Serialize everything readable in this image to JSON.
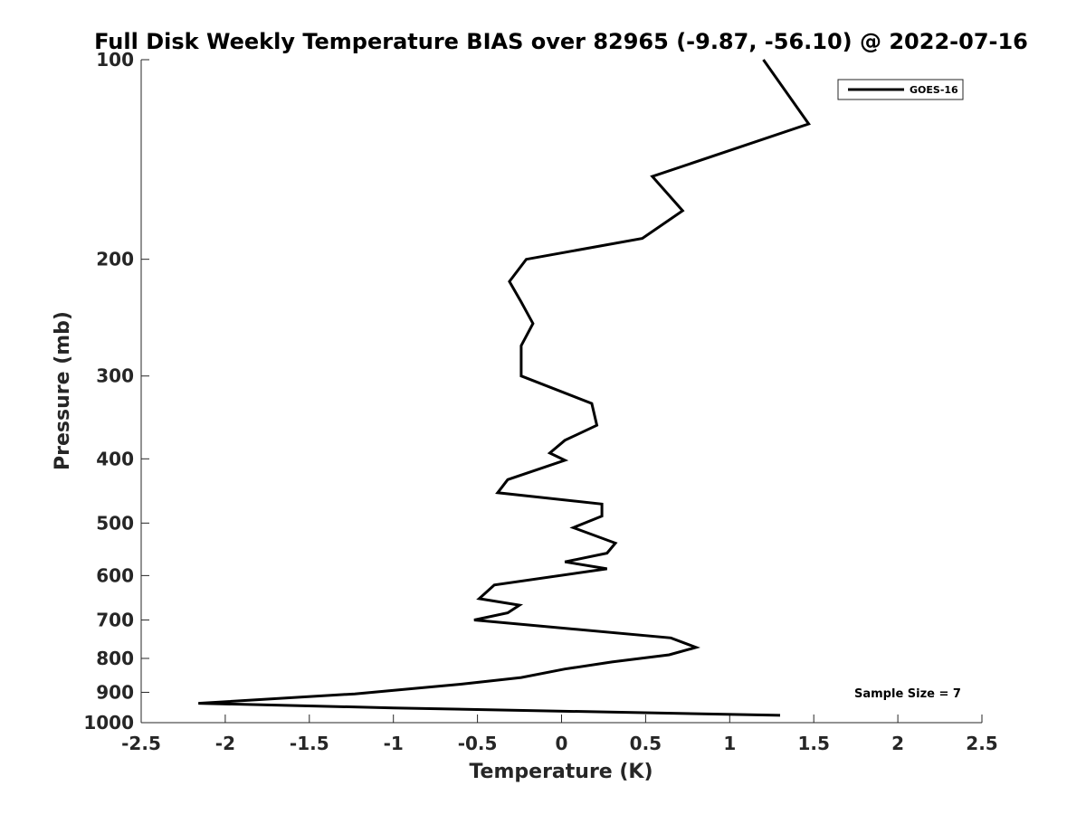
{
  "chart_data": {
    "type": "line",
    "title": "Full Disk Weekly Temperature BIAS over 82965 (-9.87, -56.10) @ 2022-07-16",
    "xlabel": "Temperature (K)",
    "ylabel": "Pressure (mb)",
    "xlim": [
      -2.5,
      2.5
    ],
    "ylim": [
      100,
      1000
    ],
    "y_scale": "log",
    "y_reversed": true,
    "grid": false,
    "x_ticks": [
      -2.5,
      -2,
      -1.5,
      -1,
      -0.5,
      0,
      0.5,
      1,
      1.5,
      2,
      2.5
    ],
    "x_tick_labels": [
      "-2.5",
      "-2",
      "-1.5",
      "-1",
      "-0.5",
      "0",
      "0.5",
      "1",
      "1.5",
      "2",
      "2.5"
    ],
    "y_ticks": [
      100,
      200,
      300,
      400,
      500,
      600,
      700,
      800,
      900,
      1000
    ],
    "y_tick_labels": [
      "100",
      "200",
      "300",
      "400",
      "500",
      "600",
      "700",
      "800",
      "900",
      "1000"
    ],
    "legend": {
      "position": "top-right",
      "entries": [
        "GOES-16"
      ]
    },
    "annotation": "Sample Size = 7",
    "series": [
      {
        "name": "GOES-16",
        "color": "#000000",
        "points": [
          [
            1.2,
            100
          ],
          [
            1.47,
            125
          ],
          [
            0.54,
            150
          ],
          [
            0.72,
            169
          ],
          [
            0.48,
            186
          ],
          [
            -0.21,
            200
          ],
          [
            -0.31,
            216
          ],
          [
            -0.24,
            232
          ],
          [
            -0.17,
            250
          ],
          [
            -0.24,
            270
          ],
          [
            -0.24,
            300
          ],
          [
            0.18,
            330
          ],
          [
            0.21,
            356
          ],
          [
            0.02,
            375
          ],
          [
            -0.07,
            392
          ],
          [
            0.02,
            402
          ],
          [
            -0.32,
            430
          ],
          [
            -0.38,
            450
          ],
          [
            0.24,
            468
          ],
          [
            0.24,
            488
          ],
          [
            0.07,
            508
          ],
          [
            0.32,
            536
          ],
          [
            0.27,
            555
          ],
          [
            0.02,
            572
          ],
          [
            0.27,
            586
          ],
          [
            -0.4,
            620
          ],
          [
            -0.49,
            650
          ],
          [
            -0.25,
            665
          ],
          [
            -0.32,
            683
          ],
          [
            -0.52,
            700
          ],
          [
            0.65,
            745
          ],
          [
            0.8,
            770
          ],
          [
            0.64,
            790
          ],
          [
            0.3,
            810
          ],
          [
            0.02,
            830
          ],
          [
            -0.24,
            855
          ],
          [
            -0.6,
            875
          ],
          [
            -1.23,
            905
          ],
          [
            -2.16,
            935
          ],
          [
            -1.0,
            950
          ],
          [
            1.3,
            975
          ]
        ]
      }
    ]
  }
}
